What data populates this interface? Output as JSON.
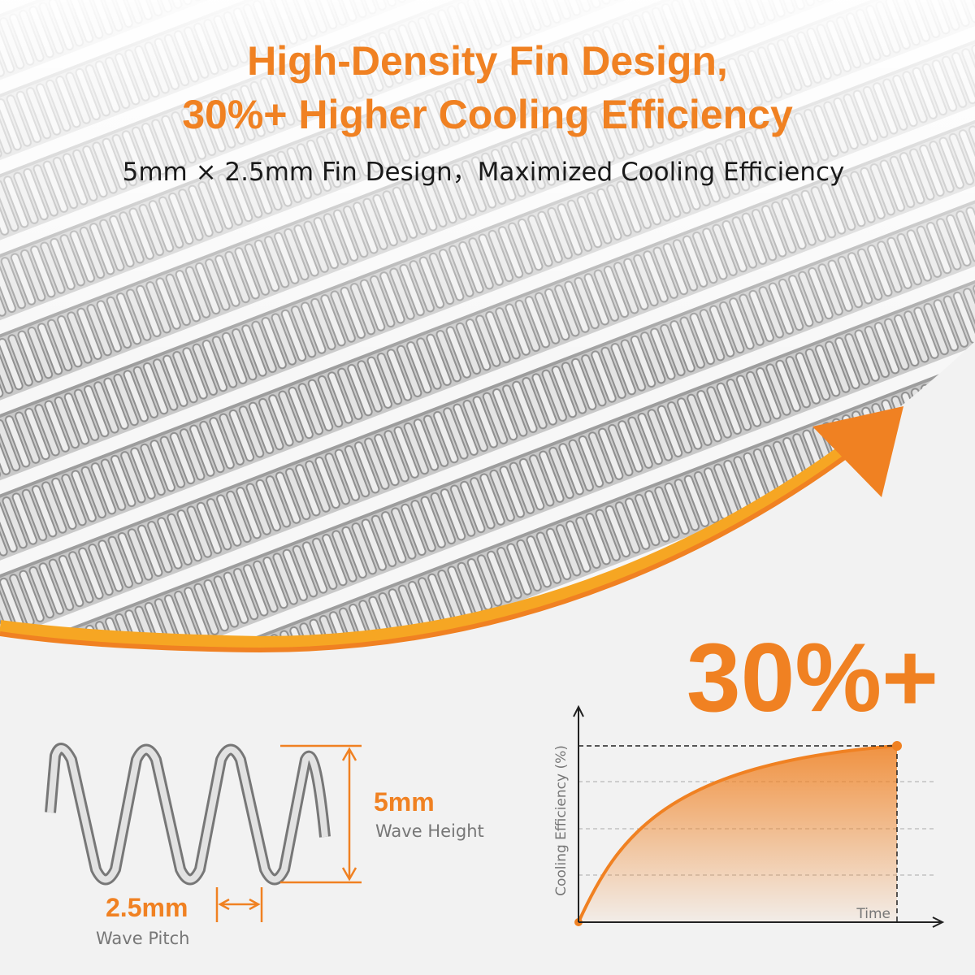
{
  "header": {
    "title_lines": [
      "High-Density Fin Design,",
      "30%+ Higher Cooling Efficiency"
    ],
    "subtitle": "5mm × 2.5mm Fin Design，Maximized Cooling Efficiency"
  },
  "highlight": "30%+",
  "fin_diagram": {
    "height_value": "5mm",
    "height_label": "Wave Height",
    "pitch_value": "2.5mm",
    "pitch_label": "Wave Pitch"
  },
  "efficiency_graph": {
    "y_axis_label": "Cooling Efficiency (%)",
    "x_axis_label": "Time"
  }
}
